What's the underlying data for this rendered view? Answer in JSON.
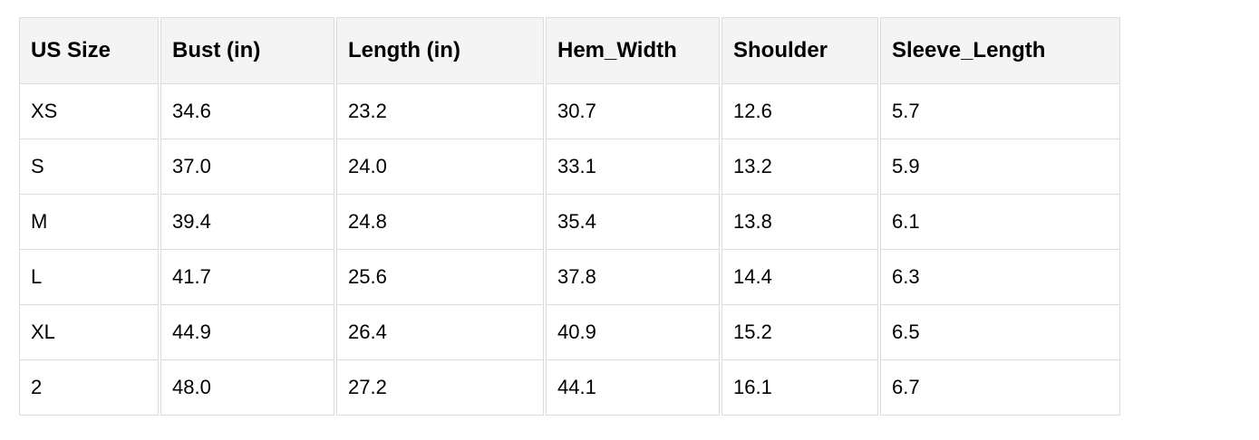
{
  "table": {
    "headers": [
      "US Size",
      "Bust (in)",
      "Length (in)",
      "Hem_Width",
      "Shoulder",
      "Sleeve_Length"
    ],
    "rows": [
      [
        "XS",
        "34.6",
        "23.2",
        "30.7",
        "12.6",
        "5.7"
      ],
      [
        "S",
        "37.0",
        "24.0",
        "33.1",
        "13.2",
        "5.9"
      ],
      [
        "M",
        "39.4",
        "24.8",
        "35.4",
        "13.8",
        "6.1"
      ],
      [
        "L",
        "41.7",
        "25.6",
        "37.8",
        "14.4",
        "6.3"
      ],
      [
        "XL",
        "44.9",
        "26.4",
        "40.9",
        "15.2",
        "6.5"
      ],
      [
        "2",
        "48.0",
        "27.2",
        "44.1",
        "16.1",
        "6.7"
      ]
    ]
  }
}
